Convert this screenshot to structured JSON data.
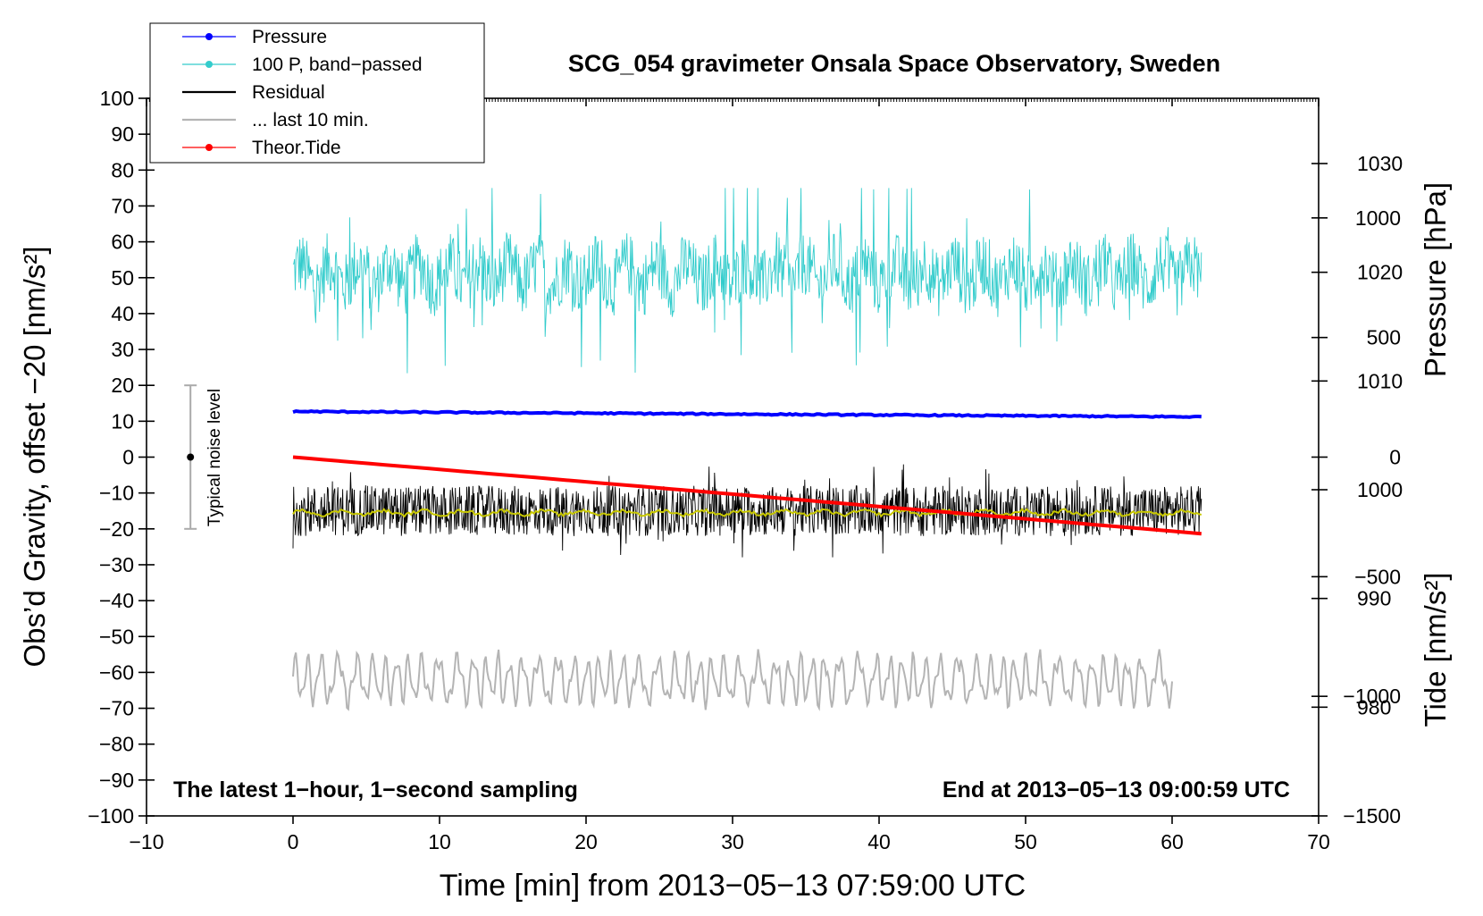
{
  "chart_data": {
    "type": "line",
    "title": "SCG_054 gravimeter Onsala Space Observatory, Sweden",
    "xlabel": "Time [min] from 2013−05−13 07:59:00 UTC",
    "ylabel_left": "Obs’d Gravity, offset −20 [nm/s²]",
    "ylabel_pressure": "Pressure [hPa]",
    "ylabel_tide": "Tide [nm/s²]",
    "xlim": [
      -10,
      70
    ],
    "ylim": [
      -100,
      100
    ],
    "x_ticks": [
      "−10",
      "0",
      "10",
      "20",
      "30",
      "40",
      "50",
      "60",
      "70"
    ],
    "y_ticks": [
      "100",
      "90",
      "80",
      "70",
      "60",
      "50",
      "40",
      "30",
      "20",
      "10",
      "0",
      "−10",
      "−20",
      "−30",
      "−40",
      "−50",
      "−60",
      "−70",
      "−80",
      "−90",
      "−100"
    ],
    "pressure_axis": {
      "range_hPa": [
        970,
        1036
      ],
      "ticks": [
        "1030",
        "1020",
        "1010",
        "1000",
        "990",
        "980"
      ]
    },
    "tide_axis": {
      "range": [
        -1500,
        1500
      ],
      "ticks": [
        "1000",
        "500",
        "0",
        "−500",
        "−1000",
        "−1500"
      ]
    },
    "legend": [
      {
        "label": "Pressure",
        "color": "#0000ff",
        "marker": "dot"
      },
      {
        "label": "100 P, band−passed",
        "color": "#33cccc",
        "marker": "dot"
      },
      {
        "label": "Residual",
        "color": "#000000",
        "marker": "none"
      },
      {
        "label": "... last 10 min.",
        "color": "#b4b4b4",
        "marker": "none"
      },
      {
        "label": "Theor.Tide",
        "color": "#ff0000",
        "marker": "dot"
      }
    ],
    "series": [
      {
        "name": "Pressure",
        "unit": "hPa",
        "color": "#0000ff",
        "x_range": [
          0,
          62
        ],
        "start": 1007.2,
        "end": 1006.7,
        "style": "nearly flat"
      },
      {
        "name": "100 P, band-passed",
        "unit": "nm/s²",
        "color": "#33cccc",
        "x_range": [
          0,
          62
        ],
        "mean": 51,
        "min": 20,
        "max": 75,
        "style": "dense noise"
      },
      {
        "name": "Residual",
        "unit": "nm/s²",
        "color": "#000000",
        "x_range": [
          0,
          62
        ],
        "mean": -15,
        "min": -29,
        "max": -2,
        "style": "dense noise"
      },
      {
        "name": "Residual smoothed",
        "unit": "nm/s²",
        "color": "#c8c800",
        "x_range": [
          0,
          62
        ],
        "mean": -15.5,
        "style": "smooth"
      },
      {
        "name": "... last 10 min.",
        "unit": "nm/s²",
        "color": "#b4b4b4",
        "x_range": [
          0,
          60
        ],
        "mean": -62,
        "min": -73,
        "max": -51,
        "style": "oscillating"
      },
      {
        "name": "Theor.Tide",
        "unit": "nm/s²",
        "color": "#ff0000",
        "x_range": [
          0,
          62
        ],
        "start": 0,
        "end": -320,
        "style": "linear"
      }
    ],
    "noise_bar": {
      "label": "Typical noise level",
      "x": -7,
      "center": 0,
      "low": -20,
      "high": 20
    },
    "annotations": {
      "left": "The latest 1−hour, 1−second sampling",
      "right": "End at 2013−05−13 09:00:59 UTC"
    }
  }
}
